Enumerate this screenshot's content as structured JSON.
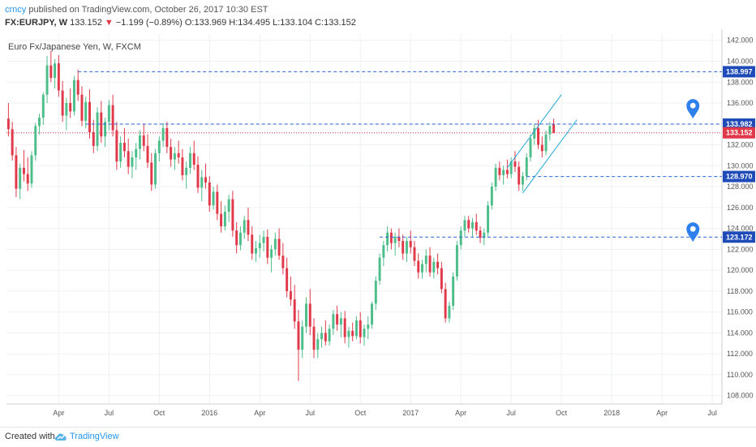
{
  "header": {
    "author": "crncy",
    "published": "published on TradingView.com, October 26, 2017 10:30 EST"
  },
  "ticker": {
    "symbol": "FX:EURJPY, W",
    "last": "133.152",
    "arrow": "▼",
    "change": "−1.199 (−0.89%)",
    "ohlc": "O:133.969 H:134.495 L:133.104 C:133.152"
  },
  "footer": {
    "created": "Created with",
    "brand": "TradingView",
    "logo_icon": "tradingview-cloud-icon"
  },
  "colors": {
    "up": "#4dbd8a",
    "down": "#e0394a",
    "level_line": "#2b63d6",
    "last_price_line": "#e0394a",
    "channel": "#1fa6d6",
    "marker": "#2f80ed",
    "grid": "#eef0f4"
  },
  "chart_data": {
    "type": "candlestick",
    "title": "Euro Fx/Japanese Yen, W, FXCM",
    "ylim": [
      107.2,
      142.6
    ],
    "y_ticks": [
      108,
      110,
      112,
      114,
      116,
      118,
      120,
      122,
      124,
      126,
      128,
      130,
      132,
      134,
      136,
      138,
      140,
      142
    ],
    "x_labels": [
      "Apr",
      "Jul",
      "Oct",
      "2016",
      "Apr",
      "Jul",
      "Oct",
      "2017",
      "Apr",
      "Jul",
      "Oct",
      "2018",
      "Apr",
      "Jul"
    ],
    "x_label_weeks": [
      13,
      26,
      39,
      52,
      65,
      78,
      91,
      104,
      117,
      130,
      143,
      156,
      169,
      182
    ],
    "total_weeks": 185,
    "last_price": 133.152,
    "levels": [
      {
        "price": 138.997,
        "label": "138.997",
        "from_week": 18
      },
      {
        "price": 133.982,
        "label": "133.982",
        "from_week": 20
      },
      {
        "price": 128.97,
        "label": "128.970",
        "from_week": 134
      },
      {
        "price": 123.172,
        "label": "123.172",
        "from_week": 96
      }
    ],
    "last_tag": "133.152",
    "channel": {
      "upper": [
        [
          129,
          129.8
        ],
        [
          143,
          136.8
        ]
      ],
      "lower": [
        [
          133,
          127.4
        ],
        [
          147,
          134.4
        ]
      ]
    },
    "markers": [
      {
        "week": 177,
        "price": 135.6
      },
      {
        "week": 177,
        "price": 123.8
      }
    ],
    "candles": [
      [
        134.5,
        136.0,
        132.8,
        133.5
      ],
      [
        133.5,
        134.2,
        130.5,
        131.0
      ],
      [
        131.0,
        131.8,
        127.0,
        127.8
      ],
      [
        127.8,
        130.2,
        126.8,
        129.8
      ],
      [
        129.8,
        131.5,
        128.5,
        129.2
      ],
      [
        129.2,
        130.8,
        127.6,
        128.3
      ],
      [
        128.3,
        131.4,
        127.9,
        131.0
      ],
      [
        131.0,
        134.1,
        130.5,
        133.8
      ],
      [
        133.8,
        135.0,
        133.0,
        134.6
      ],
      [
        134.6,
        137.0,
        133.9,
        136.8
      ],
      [
        136.8,
        140.5,
        136.0,
        139.6
      ],
      [
        139.6,
        141.0,
        138.0,
        138.4
      ],
      [
        138.4,
        140.2,
        137.4,
        139.8
      ],
      [
        139.8,
        140.6,
        136.6,
        137.2
      ],
      [
        137.2,
        138.1,
        134.2,
        134.8
      ],
      [
        134.8,
        136.5,
        133.4,
        136.0
      ],
      [
        136.0,
        137.4,
        134.6,
        135.2
      ],
      [
        135.2,
        138.6,
        134.8,
        138.2
      ],
      [
        138.2,
        139.2,
        136.2,
        136.8
      ],
      [
        136.8,
        137.6,
        133.8,
        134.3
      ],
      [
        134.3,
        136.6,
        133.6,
        136.1
      ],
      [
        136.1,
        137.3,
        132.6,
        133.2
      ],
      [
        133.2,
        134.4,
        131.2,
        131.9
      ],
      [
        131.9,
        135.6,
        131.4,
        135.1
      ],
      [
        135.1,
        136.2,
        132.2,
        132.8
      ],
      [
        132.8,
        134.6,
        131.8,
        134.2
      ],
      [
        134.2,
        136.3,
        133.4,
        135.8
      ],
      [
        135.8,
        136.8,
        132.8,
        133.4
      ],
      [
        133.4,
        134.2,
        129.6,
        130.4
      ],
      [
        130.4,
        132.8,
        129.8,
        132.2
      ],
      [
        132.2,
        133.6,
        130.8,
        131.4
      ],
      [
        131.4,
        132.6,
        129.2,
        129.9
      ],
      [
        129.9,
        131.4,
        128.8,
        130.8
      ],
      [
        130.8,
        132.2,
        129.6,
        131.6
      ],
      [
        131.6,
        133.4,
        130.6,
        132.9
      ],
      [
        132.9,
        134.0,
        131.4,
        131.9
      ],
      [
        131.9,
        133.0,
        129.8,
        130.3
      ],
      [
        130.3,
        131.2,
        127.6,
        128.2
      ],
      [
        128.2,
        131.6,
        127.8,
        131.2
      ],
      [
        131.2,
        132.8,
        130.4,
        132.4
      ],
      [
        132.4,
        134.1,
        131.8,
        133.6
      ],
      [
        133.6,
        134.2,
        131.2,
        131.8
      ],
      [
        131.8,
        132.6,
        129.9,
        130.6
      ],
      [
        130.6,
        131.8,
        129.6,
        131.2
      ],
      [
        131.2,
        132.4,
        130.2,
        130.8
      ],
      [
        130.8,
        131.6,
        128.6,
        129.1
      ],
      [
        129.1,
        130.4,
        127.8,
        129.8
      ],
      [
        129.8,
        131.8,
        129.2,
        131.2
      ],
      [
        131.2,
        132.4,
        129.6,
        130.1
      ],
      [
        130.1,
        130.9,
        127.4,
        127.9
      ],
      [
        127.9,
        129.6,
        126.6,
        128.9
      ],
      [
        128.9,
        130.2,
        127.8,
        128.4
      ],
      [
        128.4,
        129.0,
        125.6,
        126.2
      ],
      [
        126.2,
        128.0,
        125.8,
        127.5
      ],
      [
        127.5,
        128.2,
        124.8,
        125.4
      ],
      [
        125.4,
        126.6,
        123.6,
        124.2
      ],
      [
        124.2,
        126.2,
        123.8,
        125.6
      ],
      [
        125.6,
        127.2,
        124.6,
        126.8
      ],
      [
        126.8,
        127.6,
        123.2,
        123.8
      ],
      [
        123.8,
        124.6,
        121.6,
        122.4
      ],
      [
        122.4,
        124.2,
        121.9,
        123.6
      ],
      [
        123.6,
        125.2,
        123.0,
        124.8
      ],
      [
        124.8,
        126.0,
        122.8,
        123.4
      ],
      [
        123.4,
        124.2,
        121.0,
        121.6
      ],
      [
        121.6,
        122.8,
        120.8,
        122.1
      ],
      [
        122.1,
        123.4,
        121.2,
        122.6
      ],
      [
        122.6,
        123.8,
        121.8,
        123.2
      ],
      [
        123.2,
        123.9,
        120.6,
        121.2
      ],
      [
        121.2,
        122.4,
        119.8,
        122.0
      ],
      [
        122.0,
        123.6,
        121.4,
        123.0
      ],
      [
        123.0,
        124.0,
        121.0,
        121.4
      ],
      [
        121.4,
        122.6,
        119.6,
        120.2
      ],
      [
        120.2,
        121.2,
        117.4,
        118.0
      ],
      [
        118.0,
        119.4,
        116.6,
        117.2
      ],
      [
        117.2,
        118.6,
        114.4,
        115.1
      ],
      [
        115.1,
        116.2,
        109.4,
        112.4
      ],
      [
        112.4,
        115.2,
        111.6,
        114.6
      ],
      [
        114.6,
        117.4,
        114.0,
        116.8
      ],
      [
        116.8,
        118.2,
        113.8,
        114.6
      ],
      [
        114.6,
        115.4,
        111.6,
        112.4
      ],
      [
        112.4,
        114.0,
        111.6,
        113.4
      ],
      [
        113.4,
        114.6,
        112.6,
        114.0
      ],
      [
        114.0,
        115.2,
        112.8,
        113.2
      ],
      [
        113.2,
        114.8,
        112.8,
        114.4
      ],
      [
        114.4,
        116.2,
        113.8,
        115.8
      ],
      [
        115.8,
        116.6,
        114.2,
        114.8
      ],
      [
        114.8,
        116.0,
        113.6,
        115.4
      ],
      [
        115.4,
        116.1,
        113.0,
        113.6
      ],
      [
        113.6,
        114.6,
        112.6,
        114.2
      ],
      [
        114.2,
        115.0,
        113.2,
        113.7
      ],
      [
        113.7,
        115.6,
        113.4,
        115.2
      ],
      [
        115.2,
        116.0,
        113.0,
        113.6
      ],
      [
        113.6,
        114.8,
        112.8,
        114.4
      ],
      [
        114.4,
        115.6,
        113.4,
        114.8
      ],
      [
        114.8,
        117.0,
        114.4,
        116.8
      ],
      [
        116.8,
        119.4,
        116.2,
        119.0
      ],
      [
        119.0,
        121.6,
        118.6,
        121.2
      ],
      [
        121.2,
        122.8,
        120.4,
        122.4
      ],
      [
        122.4,
        124.2,
        121.8,
        123.6
      ],
      [
        123.6,
        124.0,
        122.0,
        122.6
      ],
      [
        122.6,
        123.6,
        121.4,
        123.2
      ],
      [
        123.2,
        124.0,
        122.2,
        122.8
      ],
      [
        122.8,
        123.4,
        121.0,
        121.6
      ],
      [
        121.6,
        123.2,
        120.8,
        122.8
      ],
      [
        122.8,
        123.8,
        121.6,
        122.2
      ],
      [
        122.2,
        122.8,
        120.4,
        120.9
      ],
      [
        120.9,
        121.6,
        119.2,
        119.8
      ],
      [
        119.8,
        121.0,
        119.2,
        120.6
      ],
      [
        120.6,
        122.0,
        119.8,
        121.4
      ],
      [
        121.4,
        122.2,
        119.4,
        119.8
      ],
      [
        119.8,
        121.2,
        119.2,
        120.8
      ],
      [
        120.8,
        121.6,
        119.6,
        120.2
      ],
      [
        120.2,
        120.8,
        117.8,
        118.2
      ],
      [
        118.2,
        118.8,
        115.0,
        115.4
      ],
      [
        115.4,
        117.0,
        115.0,
        116.6
      ],
      [
        116.6,
        119.8,
        116.2,
        119.4
      ],
      [
        119.4,
        122.8,
        119.0,
        122.4
      ],
      [
        122.4,
        124.2,
        122.0,
        123.8
      ],
      [
        123.8,
        125.2,
        123.2,
        124.8
      ],
      [
        124.8,
        125.2,
        123.6,
        124.0
      ],
      [
        124.0,
        125.0,
        123.2,
        124.6
      ],
      [
        124.6,
        125.4,
        123.4,
        123.8
      ],
      [
        123.8,
        124.2,
        122.6,
        123.1
      ],
      [
        123.1,
        124.0,
        122.4,
        123.6
      ],
      [
        123.6,
        126.6,
        123.2,
        126.2
      ],
      [
        126.2,
        128.4,
        125.8,
        128.0
      ],
      [
        128.0,
        130.2,
        127.6,
        129.8
      ],
      [
        129.8,
        130.4,
        128.6,
        129.1
      ],
      [
        129.1,
        130.0,
        128.2,
        129.6
      ],
      [
        129.6,
        130.6,
        128.8,
        129.2
      ],
      [
        129.2,
        130.8,
        128.8,
        130.4
      ],
      [
        130.4,
        131.4,
        129.4,
        129.9
      ],
      [
        129.9,
        130.4,
        127.6,
        128.2
      ],
      [
        128.2,
        129.4,
        127.6,
        129.0
      ],
      [
        129.0,
        131.2,
        128.6,
        130.8
      ],
      [
        130.8,
        133.0,
        130.4,
        132.6
      ],
      [
        132.6,
        134.0,
        132.0,
        133.6
      ],
      [
        133.6,
        134.4,
        131.6,
        132.0
      ],
      [
        132.0,
        132.8,
        130.8,
        131.4
      ],
      [
        131.4,
        133.4,
        131.0,
        133.0
      ],
      [
        133.0,
        134.2,
        132.4,
        133.8
      ],
      [
        133.97,
        134.5,
        133.1,
        133.15
      ]
    ]
  }
}
